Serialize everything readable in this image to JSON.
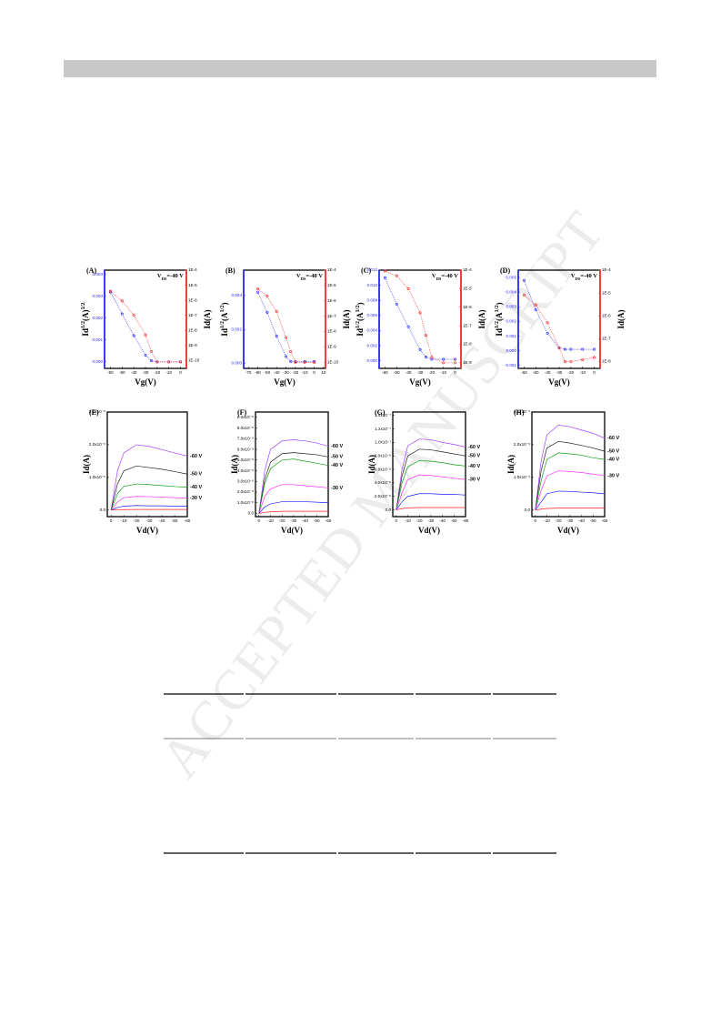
{
  "watermark": "ACCEPTED MANUSCRIPT",
  "chart_data": [
    {
      "type": "line",
      "label": "(A)",
      "annotation": [
        "V",
        "DS",
        "=-40 V"
      ],
      "xlabel": "Vg(V)",
      "ylabel": [
        "Id",
        "1/2",
        "(A)",
        "1/2"
      ],
      "y2label": "Id(A)",
      "x": [
        -60,
        -50,
        -40,
        -30,
        -25,
        -20,
        -10,
        0
      ],
      "xlim": [
        -65,
        5
      ],
      "xticks": [
        -60,
        -50,
        -40,
        -30,
        -20,
        -10,
        0
      ],
      "ylim": [
        -0.0003,
        0.0042
      ],
      "yticks": [
        {
          "value": 0,
          "label": "0.000"
        },
        {
          "value": 0.001,
          "label": "0.001"
        },
        {
          "value": 0.002,
          "label": "0.002"
        },
        {
          "value": 0.003,
          "label": "0.003"
        },
        {
          "value": 0.004,
          "label": "0.004"
        }
      ],
      "y2lim": [
        3e-11,
        0.0001
      ],
      "y2log": true,
      "y2ticks": [
        {
          "value": 0.0001,
          "label": "1E-4"
        },
        {
          "value": 1e-05,
          "label": "1E-5"
        },
        {
          "value": 1e-06,
          "label": "1E-6"
        },
        {
          "value": 1e-07,
          "label": "1E-7"
        },
        {
          "value": 1e-08,
          "label": "1E-8"
        },
        {
          "value": 1e-09,
          "label": "1E-9"
        },
        {
          "value": 1e-10,
          "label": "1E-10"
        }
      ],
      "series": [
        {
          "color": "#1f1fff",
          "values": [
            0.0032,
            0.0022,
            0.0012,
            0.0003,
            5e-05,
            0,
            0,
            0
          ]
        },
        {
          "color": "#ff2020",
          "axis": "y2",
          "values": [
            4e-06,
            9e-07,
            1e-07,
            5e-09,
            4e-10,
            8e-11,
            8e-11,
            8e-11
          ]
        }
      ]
    },
    {
      "type": "line",
      "label": "(B)",
      "annotation": [
        "V",
        "DS",
        "=-40 V"
      ],
      "xlabel": "Vg(V)",
      "ylabel": [
        "Id",
        "1/2",
        "(A",
        "1/2",
        ")"
      ],
      "y2label": "Id(A)",
      "x": [
        -60,
        -50,
        -40,
        -30,
        -25,
        -20,
        -10,
        0
      ],
      "xlim": [
        -75,
        12
      ],
      "xticks": [
        -70,
        -60,
        -50,
        -40,
        -30,
        -20,
        -10,
        0,
        10
      ],
      "ylim": [
        -0.0003,
        0.0055
      ],
      "yticks": [
        {
          "value": 0,
          "label": "0.000"
        },
        {
          "value": 0.002,
          "label": "0.002"
        },
        {
          "value": 0.004,
          "label": "0.004"
        }
      ],
      "y2lim": [
        4e-11,
        0.0001
      ],
      "y2log": true,
      "y2ticks": [
        {
          "value": 0.0001,
          "label": "1E-4"
        },
        {
          "value": 1e-05,
          "label": "1E-5"
        },
        {
          "value": 1e-06,
          "label": "1E-6"
        },
        {
          "value": 1e-07,
          "label": "1E-7"
        },
        {
          "value": 1e-08,
          "label": "1E-8"
        },
        {
          "value": 1e-09,
          "label": "1E-9"
        },
        {
          "value": 1e-10,
          "label": "1E-10"
        }
      ],
      "series": [
        {
          "color": "#1f1fff",
          "values": [
            0.0042,
            0.003,
            0.0016,
            0.0004,
            0.0001,
            0.0001,
            0.0001,
            0.0001
          ]
        },
        {
          "color": "#ff2020",
          "axis": "y2",
          "values": [
            6e-06,
            2e-06,
            2e-07,
            4e-09,
            5e-10,
            1e-10,
            1e-10,
            1e-10
          ]
        }
      ]
    },
    {
      "type": "line",
      "label": "(C)",
      "annotation": [
        "V",
        "DS",
        "=-40 V"
      ],
      "xlabel": "Vg(V)",
      "ylabel": [
        "Id",
        "1/2",
        "(A",
        "1/2",
        ")"
      ],
      "y2label": "Id(A)",
      "x": [
        -60,
        -50,
        -40,
        -30,
        -25,
        -20,
        -10,
        0
      ],
      "xlim": [
        -65,
        5
      ],
      "xticks": [
        -60,
        -50,
        -40,
        -30,
        -20,
        -10,
        0
      ],
      "ylim": [
        -0.001,
        0.012
      ],
      "yticks": [
        {
          "value": 0,
          "label": "0.000"
        },
        {
          "value": 0.002,
          "label": "0.002"
        },
        {
          "value": 0.004,
          "label": "0.004"
        },
        {
          "value": 0.006,
          "label": "0.006"
        },
        {
          "value": 0.008,
          "label": "0.008"
        },
        {
          "value": 0.01,
          "label": "0.010"
        },
        {
          "value": 0.012,
          "label": "0.012"
        }
      ],
      "y2lim": [
        5e-10,
        0.0001
      ],
      "y2log": true,
      "y2ticks": [
        {
          "value": 0.0001,
          "label": "1E-4"
        },
        {
          "value": 1e-05,
          "label": "1E-5"
        },
        {
          "value": 1e-06,
          "label": "1E-6"
        },
        {
          "value": 1e-07,
          "label": "1E-7"
        },
        {
          "value": 1e-08,
          "label": "1E-8"
        },
        {
          "value": 1e-09,
          "label": "1E-9"
        }
      ],
      "series": [
        {
          "color": "#1f1fff",
          "values": [
            0.011,
            0.0075,
            0.0045,
            0.0015,
            0.0005,
            0.0002,
            0.0002,
            0.0002
          ]
        },
        {
          "color": "#ff2020",
          "axis": "y2",
          "values": [
            9e-05,
            5e-05,
            1e-05,
            5e-07,
            3e-08,
            2e-09,
            1e-09,
            1e-09
          ]
        }
      ]
    },
    {
      "type": "line",
      "label": "(D)",
      "annotation": [
        "V",
        "DS",
        "=-40 V"
      ],
      "xlabel": "Vg(V)",
      "ylabel": [
        "Id",
        "1/2",
        "(A",
        "1/2",
        ")"
      ],
      "y2label": "Id(A)",
      "x": [
        -60,
        -50,
        -40,
        -30,
        -25,
        -20,
        -10,
        0
      ],
      "xlim": [
        -65,
        5
      ],
      "xticks": [
        -60,
        -50,
        -40,
        -30,
        -20,
        -10,
        0
      ],
      "ylim": [
        -0.0012,
        0.0055
      ],
      "yticks": [
        {
          "value": -0.001,
          "label": "-0.001"
        },
        {
          "value": 0,
          "label": "0.000"
        },
        {
          "value": 0.001,
          "label": "0.001"
        },
        {
          "value": 0.002,
          "label": "0.002"
        },
        {
          "value": 0.003,
          "label": "0.003"
        },
        {
          "value": 0.004,
          "label": "0.004"
        },
        {
          "value": 0.005,
          "label": "0.005"
        }
      ],
      "y2lim": [
        5e-09,
        0.0001
      ],
      "y2log": true,
      "y2ticks": [
        {
          "value": 0.0001,
          "label": "1E-4"
        },
        {
          "value": 1e-05,
          "label": "1E-5"
        },
        {
          "value": 1e-06,
          "label": "1E-6"
        },
        {
          "value": 1e-07,
          "label": "1E-7"
        },
        {
          "value": 1e-08,
          "label": "1E-8"
        }
      ],
      "series": [
        {
          "color": "#1f1fff",
          "values": [
            0.0048,
            0.0028,
            0.0012,
            0.0002,
            0.0001,
            0.0001,
            0.0001,
            0.0001
          ]
        },
        {
          "color": "#ff2020",
          "axis": "y2",
          "values": [
            8e-06,
            3e-06,
            5e-07,
            4e-08,
            1e-08,
            1e-08,
            1.2e-08,
            1.5e-08
          ]
        }
      ]
    },
    {
      "type": "line",
      "label": "(E)",
      "xlabel": "Vd(V)",
      "ylabel": "Id(A)",
      "x": [
        0,
        -5,
        -10,
        -20,
        -30,
        -40,
        -50,
        -60
      ],
      "xlim": [
        3,
        -60
      ],
      "xticks": [
        0,
        -10,
        -20,
        -30,
        -40,
        -50,
        -60
      ],
      "ylim": [
        -2e-07,
        3e-06
      ],
      "yticks": [
        {
          "value": 0,
          "label": "0.0"
        },
        {
          "value": 1e-06,
          "label": "1.0x10⁻⁶"
        },
        {
          "value": 2e-06,
          "label": "2.0x10⁻⁶"
        },
        {
          "value": 3e-06,
          "label": "3.0x10⁻⁶"
        }
      ],
      "series": [
        {
          "name": "-60 V",
          "color": "#a040ff",
          "values": [
            0,
            1.2e-06,
            1.75e-06,
            2e-06,
            1.95e-06,
            1.85e-06,
            1.75e-06,
            1.65e-06
          ]
        },
        {
          "name": "-50 V",
          "color": "#202020",
          "values": [
            0,
            8e-07,
            1.2e-06,
            1.35e-06,
            1.3e-06,
            1.25e-06,
            1.18e-06,
            1.1e-06
          ]
        },
        {
          "name": "-40 V",
          "color": "#10a010",
          "values": [
            0,
            5e-07,
            7.2e-07,
            8e-07,
            7.8e-07,
            7.5e-07,
            7.2e-07,
            7e-07
          ]
        },
        {
          "name": "-30 V",
          "color": "#ff30ff",
          "values": [
            0,
            2.5e-07,
            3.8e-07,
            4.2e-07,
            4.1e-07,
            4e-07,
            3.8e-07,
            3.7e-07
          ]
        },
        {
          "color": "#2020ff",
          "values": [
            0,
            8e-08,
            1.2e-07,
            1.4e-07,
            1.3e-07,
            1.3e-07,
            1.2e-07,
            1.2e-07
          ]
        },
        {
          "color": "#ff2020",
          "values": [
            0,
            1e-08,
            1.5e-08,
            2e-08,
            2e-08,
            2e-08,
            2e-08,
            2e-08
          ]
        }
      ]
    },
    {
      "type": "line",
      "label": "(F)",
      "xlabel": "Vd(V)",
      "ylabel": "Id(A)",
      "x": [
        0,
        -5,
        -10,
        -20,
        -30,
        -40,
        -50,
        -60
      ],
      "xlim": [
        3,
        -60
      ],
      "xticks": [
        0,
        -10,
        -20,
        -30,
        -40,
        -50,
        -60
      ],
      "ylim": [
        -3e-09,
        9.5e-08
      ],
      "yticks": [
        {
          "value": 0,
          "label": "0.0"
        },
        {
          "value": 1e-08,
          "label": "1.0x10⁻⁸"
        },
        {
          "value": 2e-08,
          "label": "2.0x10⁻⁸"
        },
        {
          "value": 3e-08,
          "label": "3.0x10⁻⁸"
        },
        {
          "value": 4e-08,
          "label": "4.0x10⁻⁸"
        },
        {
          "value": 5e-08,
          "label": "5.0x10⁻⁸"
        },
        {
          "value": 6e-08,
          "label": "6.0x10⁻⁸"
        },
        {
          "value": 7e-08,
          "label": "7.0x10⁻⁸"
        },
        {
          "value": 8e-08,
          "label": "8.0x10⁻⁸"
        },
        {
          "value": 9e-08,
          "label": "9.0x10⁻⁸"
        }
      ],
      "series": [
        {
          "name": "-60 V",
          "color": "#a040ff",
          "values": [
            0,
            4e-08,
            6e-08,
            6.8e-08,
            6.9e-08,
            6.8e-08,
            6.6e-08,
            6.3e-08
          ]
        },
        {
          "name": "-50 V",
          "color": "#202020",
          "values": [
            0,
            3.2e-08,
            4.8e-08,
            5.6e-08,
            5.7e-08,
            5.6e-08,
            5.5e-08,
            5.3e-08
          ]
        },
        {
          "name": "-40 V",
          "color": "#10a010",
          "values": [
            0,
            2.8e-08,
            4.2e-08,
            5e-08,
            5.1e-08,
            4.9e-08,
            4.7e-08,
            4.5e-08
          ]
        },
        {
          "name": "-30 V",
          "color": "#ff30ff",
          "values": [
            0,
            1.6e-08,
            2.3e-08,
            2.7e-08,
            2.7e-08,
            2.6e-08,
            2.5e-08,
            2.4e-08
          ]
        },
        {
          "color": "#2020ff",
          "values": [
            0,
            6e-09,
            9e-09,
            1.1e-08,
            1.1e-08,
            1.1e-08,
            1.05e-08,
            1e-08
          ]
        },
        {
          "color": "#ff2020",
          "values": [
            0,
            1e-09,
            1.5e-09,
            2e-09,
            2e-09,
            2e-09,
            2e-09,
            2e-09
          ]
        }
      ]
    },
    {
      "type": "line",
      "label": "(G)",
      "xlabel": "Vd(V)",
      "ylabel": "Id(A)",
      "x": [
        0,
        -5,
        -10,
        -20,
        -30,
        -40,
        -50,
        -60
      ],
      "xlim": [
        3,
        -60
      ],
      "xticks": [
        0,
        -10,
        -20,
        -30,
        -40,
        -50,
        -60
      ],
      "ylim": [
        -1e-08,
        1.45e-07
      ],
      "yticks": [
        {
          "value": 0,
          "label": "0.0"
        },
        {
          "value": 2e-08,
          "label": "2.0x10⁻⁸"
        },
        {
          "value": 4e-08,
          "label": "4.0x10⁻⁸"
        },
        {
          "value": 6e-08,
          "label": "6.0x10⁻⁸"
        },
        {
          "value": 8e-08,
          "label": "8.0x10⁻⁸"
        },
        {
          "value": 1e-07,
          "label": "1.0x10⁻⁷"
        },
        {
          "value": 1.2e-07,
          "label": "1.2x10⁻⁷"
        },
        {
          "value": 1.4e-07,
          "label": "1.4x10⁻⁷"
        }
      ],
      "series": [
        {
          "name": "-60 V",
          "color": "#a040ff",
          "values": [
            0,
            6e-08,
            9.5e-08,
            1.05e-07,
            1.04e-07,
            1e-07,
            9.7e-08,
            9.3e-08
          ]
        },
        {
          "name": "-50 V",
          "color": "#202020",
          "values": [
            0,
            5e-08,
            8e-08,
            9e-08,
            8.9e-08,
            8.6e-08,
            8.3e-08,
            8e-08
          ]
        },
        {
          "name": "-40 V",
          "color": "#10a010",
          "values": [
            0,
            4e-08,
            6.4e-08,
            7.3e-08,
            7.2e-08,
            7e-08,
            6.7e-08,
            6.5e-08
          ]
        },
        {
          "name": "-30 V",
          "color": "#ff30ff",
          "values": [
            0,
            2.5e-08,
            4.5e-08,
            5.2e-08,
            5.1e-08,
            4.9e-08,
            4.7e-08,
            4.5e-08
          ]
        },
        {
          "color": "#2020ff",
          "values": [
            0,
            1.2e-08,
            2e-08,
            2.4e-08,
            2.4e-08,
            2.3e-08,
            2.3e-08,
            2.2e-08
          ]
        },
        {
          "color": "#ff2020",
          "values": [
            0,
            2e-09,
            3e-09,
            3.5e-09,
            3.5e-09,
            3.5e-09,
            3.5e-09,
            3.5e-09
          ]
        }
      ]
    },
    {
      "type": "line",
      "label": "(H)",
      "xlabel": "Vd(V)",
      "ylabel": "Id(A)",
      "x": [
        0,
        -5,
        -10,
        -20,
        -30,
        -40,
        -50,
        -60
      ],
      "xlim": [
        3,
        -60
      ],
      "xticks": [
        0,
        -10,
        -20,
        -30,
        -40,
        -50,
        -60
      ],
      "ylim": [
        -2e-07,
        3e-06
      ],
      "yticks": [
        {
          "value": 0,
          "label": "0.0"
        },
        {
          "value": 1e-06,
          "label": "1.0x10⁻⁶"
        },
        {
          "value": 2e-06,
          "label": "2.0x10⁻⁶"
        },
        {
          "value": 3e-06,
          "label": "3.0x10⁻⁶"
        }
      ],
      "series": [
        {
          "name": "-60 V",
          "color": "#a040ff",
          "values": [
            0,
            1.5e-06,
            2.3e-06,
            2.6e-06,
            2.55e-06,
            2.45e-06,
            2.35e-06,
            2.2e-06
          ]
        },
        {
          "name": "-50 V",
          "color": "#202020",
          "values": [
            0,
            1.2e-06,
            1.9e-06,
            2.1e-06,
            2.05e-06,
            1.98e-06,
            1.9e-06,
            1.8e-06
          ]
        },
        {
          "name": "-40 V",
          "color": "#10a010",
          "values": [
            0,
            9e-07,
            1.55e-06,
            1.75e-06,
            1.72e-06,
            1.68e-06,
            1.6e-06,
            1.55e-06
          ]
        },
        {
          "name": "-30 V",
          "color": "#ff30ff",
          "values": [
            0,
            6e-07,
            1.05e-06,
            1.2e-06,
            1.18e-06,
            1.15e-06,
            1.1e-06,
            1.05e-06
          ]
        },
        {
          "color": "#2020ff",
          "values": [
            0,
            2.5e-07,
            5e-07,
            5.8e-07,
            5.7e-07,
            5.5e-07,
            5.3e-07,
            5e-07
          ]
        },
        {
          "color": "#ff2020",
          "values": [
            0,
            3e-08,
            5e-08,
            6e-08,
            6e-08,
            6e-08,
            6e-08,
            6e-08
          ]
        }
      ]
    }
  ]
}
